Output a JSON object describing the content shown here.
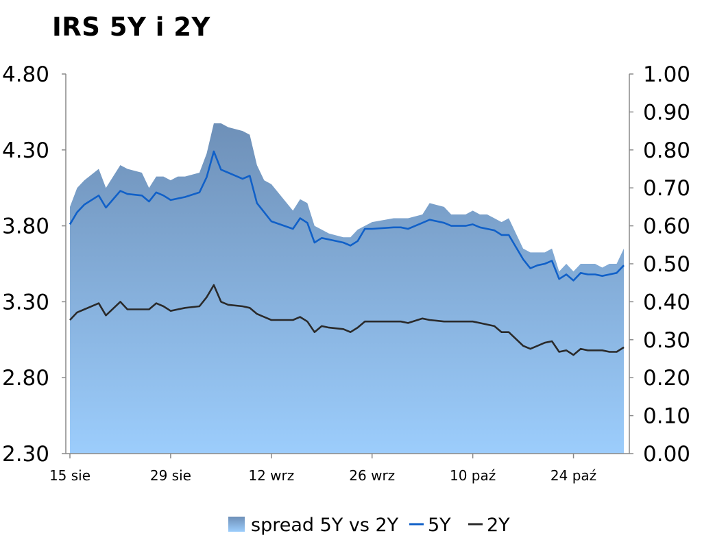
{
  "chart_data": {
    "type": "line",
    "title": "IRS 5Y i 2Y",
    "left_axis": {
      "ticks": [
        "4.80",
        "4.30",
        "3.80",
        "3.30",
        "2.80",
        "2.30"
      ],
      "range": [
        2.3,
        4.8
      ]
    },
    "right_axis": {
      "ticks": [
        "1.00",
        "0.90",
        "0.80",
        "0.70",
        "0.60",
        "0.50",
        "0.40",
        "0.30",
        "0.20",
        "0.10",
        "0.00"
      ],
      "range": [
        0.0,
        1.0
      ]
    },
    "x_ticks": [
      {
        "label": "15 sie",
        "day": 0
      },
      {
        "label": "29 sie",
        "day": 14
      },
      {
        "label": "12 wrz",
        "day": 28
      },
      {
        "label": "26 wrz",
        "day": 42
      },
      {
        "label": "10 paź",
        "day": 56
      },
      {
        "label": "24 paź",
        "day": 70
      }
    ],
    "x_range": [
      0,
      77
    ],
    "days": [
      0,
      1,
      2,
      4,
      5,
      7,
      8,
      10,
      11,
      12,
      13,
      14,
      15,
      16,
      18,
      19,
      20,
      21,
      22,
      24,
      25,
      26,
      27,
      28,
      31,
      32,
      33,
      34,
      35,
      36,
      38,
      39,
      40,
      41,
      42,
      45,
      46,
      47,
      49,
      50,
      52,
      53,
      54,
      55,
      56,
      57,
      58,
      59,
      60,
      61,
      63,
      64,
      65,
      66,
      67,
      68,
      69,
      70,
      71,
      72,
      73,
      74,
      75,
      76,
      77
    ],
    "series": [
      {
        "name": "5Y",
        "axis": "left",
        "color": "#1060C8",
        "values": [
          3.81,
          3.89,
          3.94,
          4.0,
          3.92,
          4.03,
          4.01,
          4.0,
          3.96,
          4.02,
          4.0,
          3.97,
          3.98,
          3.99,
          4.02,
          4.12,
          4.29,
          4.17,
          4.15,
          4.11,
          4.13,
          3.95,
          3.89,
          3.83,
          3.78,
          3.85,
          3.82,
          3.69,
          3.72,
          3.71,
          3.69,
          3.67,
          3.7,
          3.78,
          3.78,
          3.79,
          3.79,
          3.78,
          3.82,
          3.84,
          3.82,
          3.8,
          3.8,
          3.8,
          3.81,
          3.79,
          3.78,
          3.77,
          3.74,
          3.74,
          3.58,
          3.52,
          3.54,
          3.55,
          3.57,
          3.45,
          3.48,
          3.44,
          3.49,
          3.48,
          3.48,
          3.47,
          3.48,
          3.49,
          3.54
        ]
      },
      {
        "name": "2Y",
        "axis": "left",
        "color": "#2A2A2A",
        "values": [
          3.18,
          3.23,
          3.25,
          3.29,
          3.21,
          3.3,
          3.25,
          3.25,
          3.25,
          3.29,
          3.27,
          3.24,
          3.25,
          3.26,
          3.27,
          3.33,
          3.41,
          3.3,
          3.28,
          3.27,
          3.26,
          3.22,
          3.2,
          3.18,
          3.18,
          3.2,
          3.17,
          3.1,
          3.14,
          3.13,
          3.12,
          3.1,
          3.13,
          3.17,
          3.17,
          3.17,
          3.17,
          3.16,
          3.19,
          3.18,
          3.17,
          3.17,
          3.17,
          3.17,
          3.17,
          3.16,
          3.15,
          3.14,
          3.1,
          3.1,
          3.01,
          2.99,
          3.01,
          3.03,
          3.04,
          2.97,
          2.98,
          2.95,
          2.99,
          2.98,
          2.98,
          2.98,
          2.97,
          2.97,
          3.0
        ]
      }
    ],
    "area_series": {
      "name": "spread 5Y vs 2Y",
      "axis": "right",
      "color_top": "#6E90B8",
      "color_bottom": "#9CCDFC",
      "values": [
        0.65,
        0.7,
        0.72,
        0.75,
        0.7,
        0.76,
        0.75,
        0.74,
        0.7,
        0.73,
        0.73,
        0.72,
        0.73,
        0.73,
        0.74,
        0.79,
        0.87,
        0.87,
        0.86,
        0.85,
        0.84,
        0.76,
        0.72,
        0.71,
        0.64,
        0.67,
        0.66,
        0.6,
        0.59,
        0.58,
        0.57,
        0.57,
        0.59,
        0.6,
        0.61,
        0.62,
        0.62,
        0.62,
        0.63,
        0.66,
        0.65,
        0.63,
        0.63,
        0.63,
        0.64,
        0.63,
        0.63,
        0.62,
        0.61,
        0.62,
        0.54,
        0.53,
        0.53,
        0.53,
        0.54,
        0.48,
        0.5,
        0.48,
        0.5,
        0.5,
        0.5,
        0.49,
        0.5,
        0.5,
        0.54
      ]
    },
    "legend": {
      "position": "bottom",
      "entries": [
        "spread 5Y vs 2Y",
        "5Y",
        "2Y"
      ]
    },
    "grid": false
  }
}
